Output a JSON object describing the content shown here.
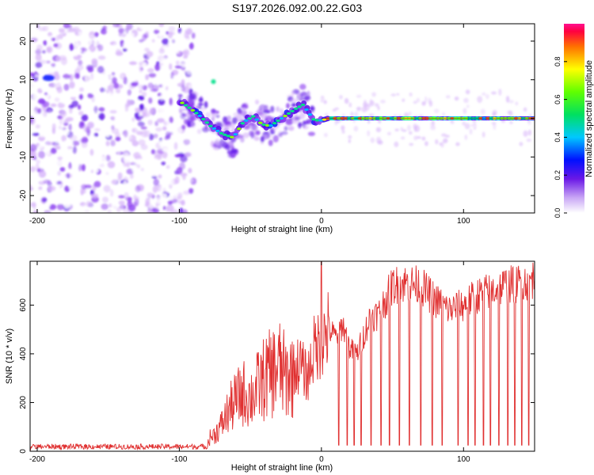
{
  "title": "S197.2026.092.00.22.G03",
  "chart_data": [
    {
      "type": "heatmap",
      "name": "spectrogram",
      "xlabel": "Height of straight line (km)",
      "ylabel": "Frequency (Hz)",
      "xlim": [
        -205,
        150
      ],
      "ylim": [
        -24.5,
        24.5
      ],
      "xticks": [
        -200,
        -100,
        0,
        100
      ],
      "xtick_labels": [
        "-200",
        "-100",
        "0",
        "100"
      ],
      "yticks": [
        -20,
        -10,
        0,
        10,
        20
      ],
      "ytick_labels": [
        "-20",
        "-10",
        "0",
        "10",
        "20"
      ],
      "ridge": {
        "x": [
          -100,
          -92,
          -85,
          -78,
          -70,
          -62,
          -55,
          -48,
          -42,
          -36,
          -30,
          -24,
          -18,
          -13,
          -9,
          -5,
          0,
          5,
          10,
          20,
          40,
          60,
          80,
          100,
          120,
          150
        ],
        "y": [
          4.5,
          2.5,
          0.5,
          -2,
          -4,
          -5,
          -1,
          0.5,
          -1.5,
          -2,
          -0.5,
          1,
          2.5,
          3.5,
          1.5,
          -0.5,
          -0.5,
          0,
          0,
          0,
          0,
          0,
          0,
          0,
          0,
          0
        ]
      },
      "colorbar": {
        "label": "Normalized spectral amplitude",
        "range": [
          0,
          1
        ],
        "ticks": [
          0.0,
          0.2,
          0.4,
          0.6,
          0.8
        ],
        "tick_labels": [
          "0.0",
          "0.2",
          "0.4",
          "0.6",
          "0.8"
        ]
      }
    },
    {
      "type": "line",
      "name": "snr",
      "xlabel": "Height of straight line (km)",
      "ylabel": "SNR (10 * v/v)",
      "xlim": [
        -205,
        150
      ],
      "ylim": [
        0,
        780
      ],
      "xticks": [
        -200,
        -100,
        0,
        100
      ],
      "xtick_labels": [
        "-200",
        "-100",
        "0",
        "100"
      ],
      "yticks": [
        0,
        200,
        400,
        600
      ],
      "ytick_labels": [
        "0",
        "200",
        "400",
        "600"
      ],
      "series": [
        {
          "name": "SNR",
          "color": "#e03030",
          "x": [
            -205,
            -190,
            -170,
            -150,
            -130,
            -110,
            -90,
            -80,
            -75,
            -70,
            -65,
            -60,
            -55,
            -50,
            -45,
            -40,
            -35,
            -30,
            -25,
            -20,
            -15,
            -10,
            -5,
            0,
            5,
            10,
            15,
            20,
            25,
            30,
            35,
            40,
            45,
            50,
            60,
            70,
            80,
            90,
            100,
            110,
            120,
            130,
            140,
            150
          ],
          "y": [
            15,
            18,
            20,
            20,
            22,
            24,
            30,
            50,
            70,
            110,
            170,
            210,
            240,
            220,
            260,
            300,
            320,
            350,
            300,
            330,
            360,
            300,
            420,
            450,
            500,
            470,
            520,
            420,
            400,
            480,
            560,
            560,
            620,
            680,
            690,
            680,
            620,
            580,
            600,
            640,
            660,
            680,
            690,
            710
          ]
        }
      ],
      "dropouts_x": [
        12,
        18,
        23,
        28,
        35,
        42,
        48,
        55,
        62,
        70,
        78,
        85,
        96,
        103,
        108,
        114,
        119,
        125,
        131,
        136,
        141,
        146
      ]
    }
  ]
}
